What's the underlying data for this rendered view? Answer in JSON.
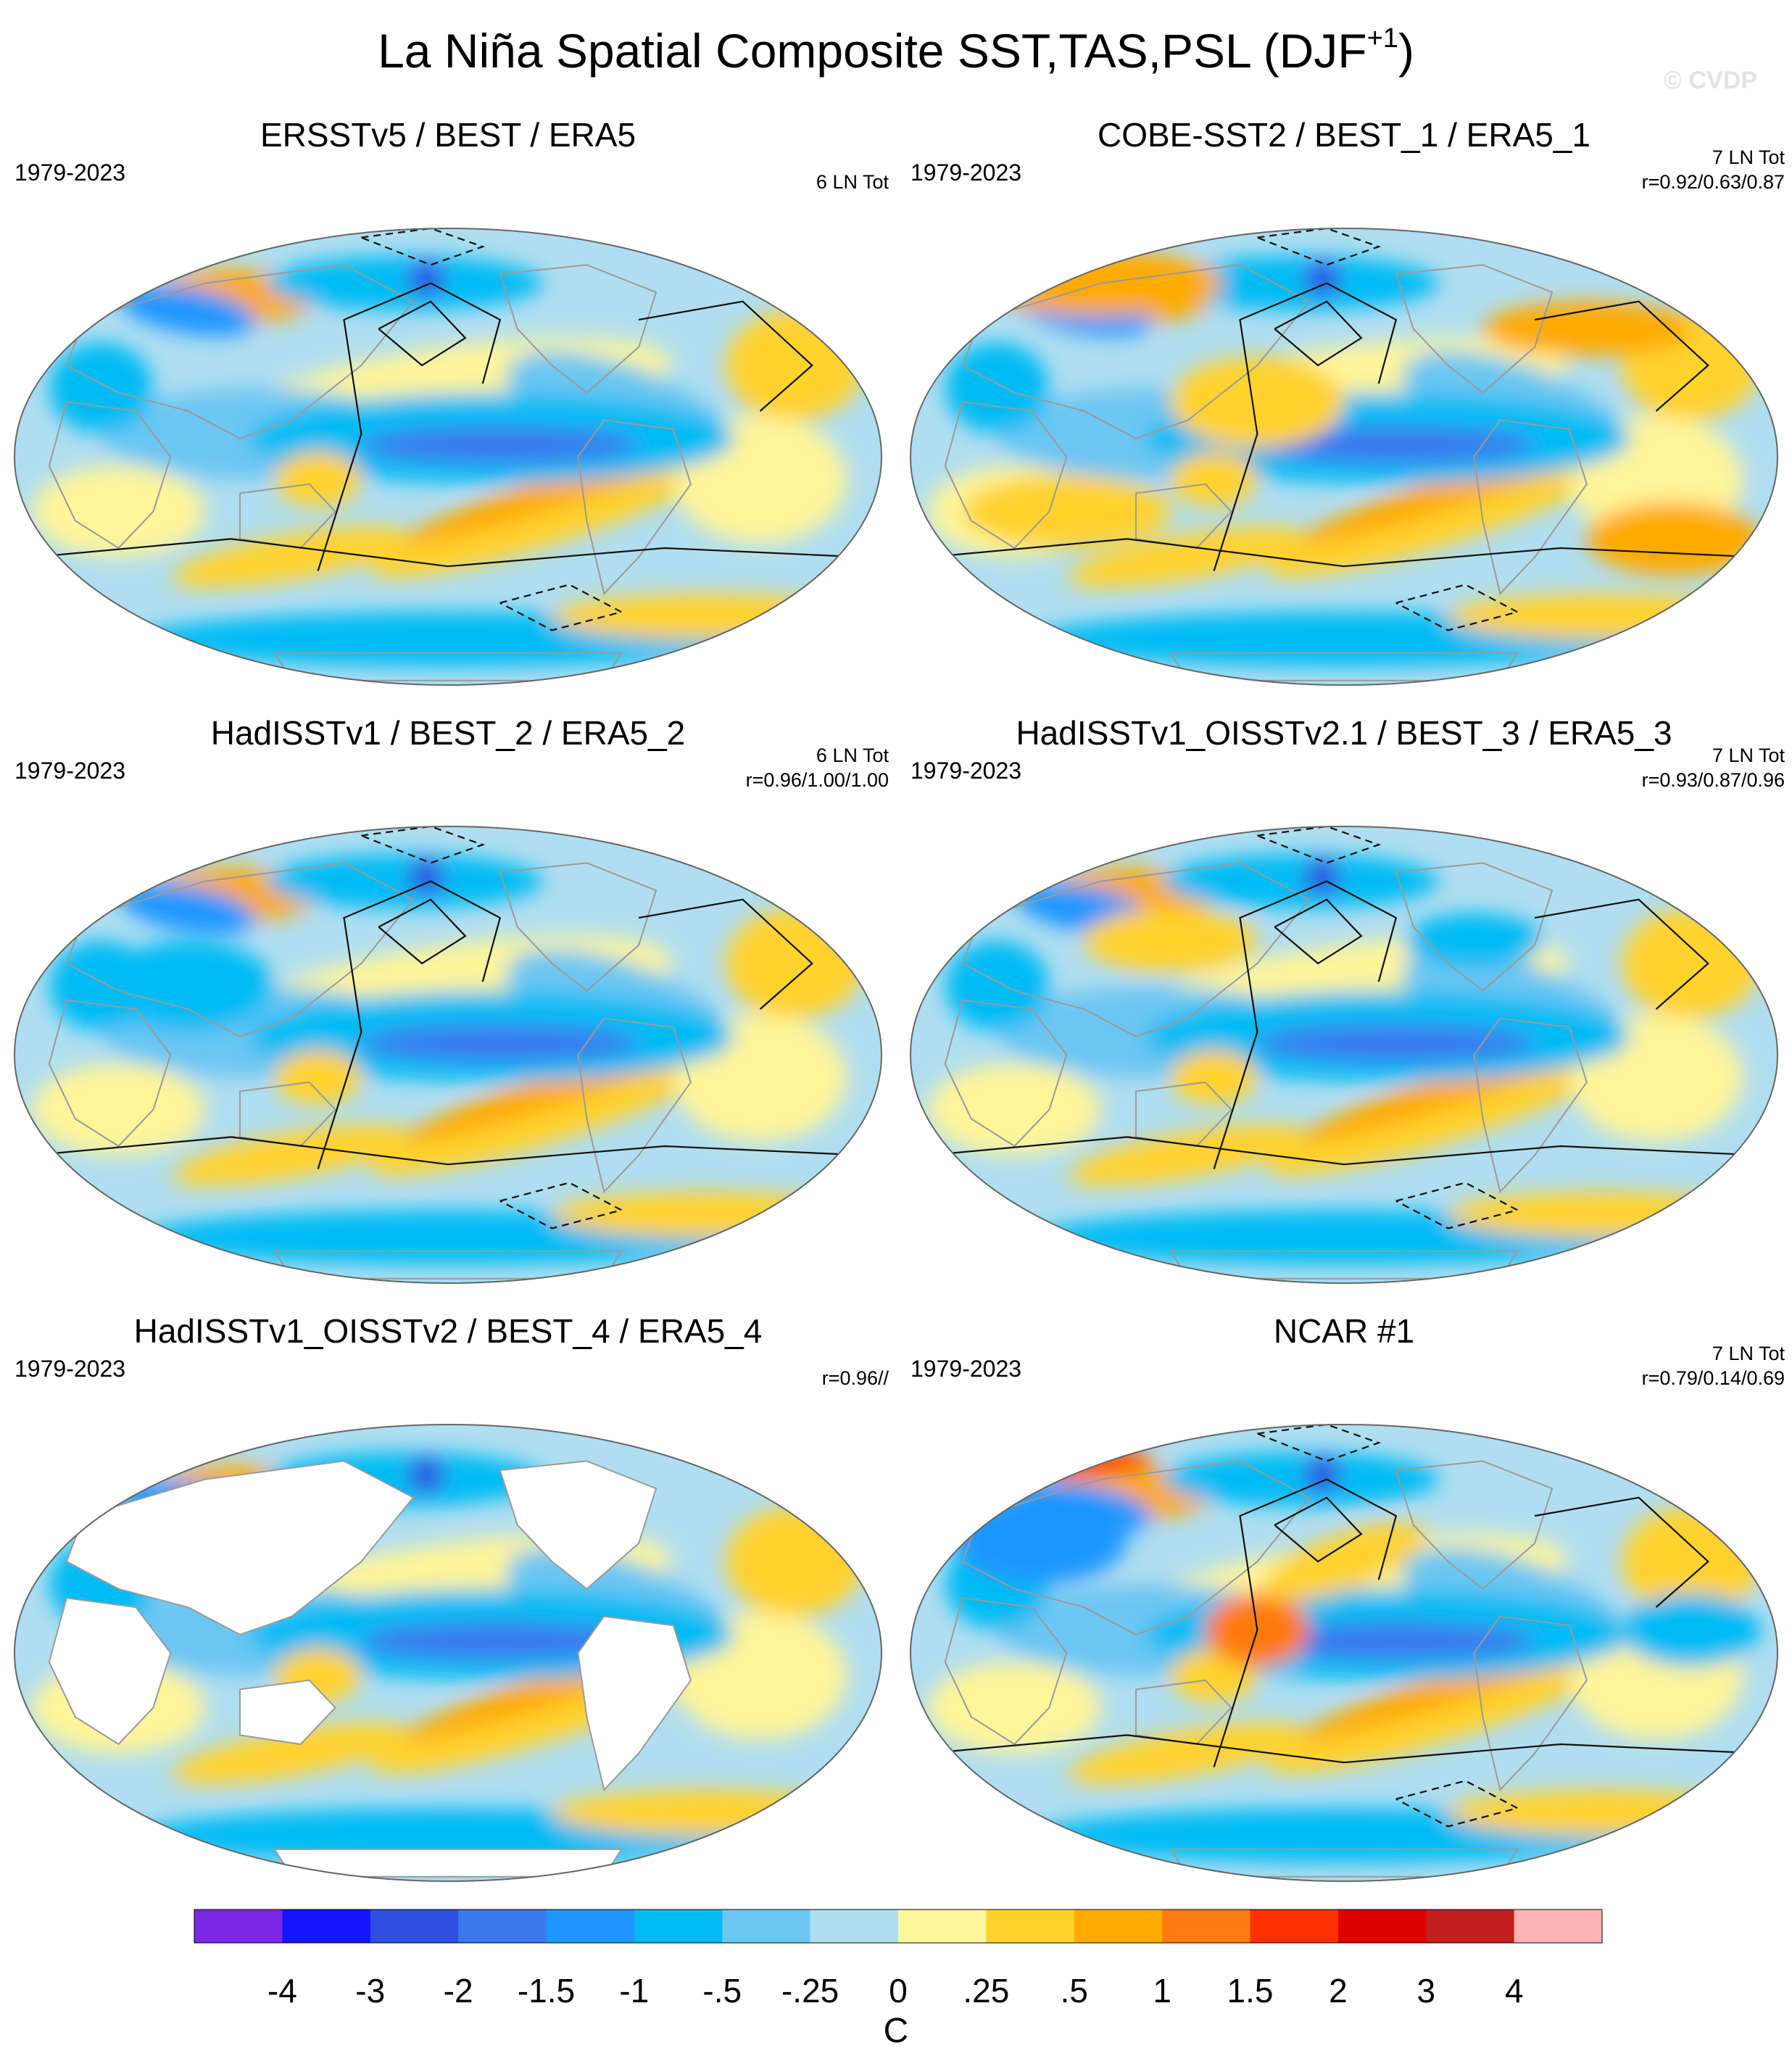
{
  "title": "La Niña Spatial Composite SST,TAS,PSL (DJF",
  "title_superscript": "+1",
  "title_suffix": ")",
  "watermark": "© CVDP",
  "panels": [
    {
      "title": "ERSSTv5 / BEST / ERA5",
      "period": "1979-2023",
      "events": "6 LN Tot",
      "corr": "",
      "land_masked": false,
      "show_psl": true
    },
    {
      "title": "COBE-SST2 / BEST_1 / ERA5_1",
      "period": "1979-2023",
      "events": "7 LN Tot",
      "corr": "r=0.92/0.63/0.87",
      "land_masked": false,
      "show_psl": true
    },
    {
      "title": "HadISSTv1 / BEST_2 / ERA5_2",
      "period": "1979-2023",
      "events": "6 LN Tot",
      "corr": "r=0.96/1.00/1.00",
      "land_masked": false,
      "show_psl": true
    },
    {
      "title": "HadISSTv1_OISSTv2.1 / BEST_3 / ERA5_3",
      "period": "1979-2023",
      "events": "7 LN Tot",
      "corr": "r=0.93/0.87/0.96",
      "land_masked": false,
      "show_psl": true
    },
    {
      "title": "HadISSTv1_OISSTv2 / BEST_4 / ERA5_4",
      "period": "1979-2023",
      "events": "",
      "corr": "r=0.96//",
      "land_masked": true,
      "show_psl": false
    },
    {
      "title": "NCAR #1",
      "period": "1979-2023",
      "events": "7 LN Tot",
      "corr": "r=0.79/0.14/0.69",
      "land_masked": false,
      "show_psl": true
    }
  ],
  "colorbar": {
    "labels": [
      "-4",
      "-3",
      "-2",
      "-1.5",
      "-1",
      "-.5",
      "-.25",
      "0",
      ".25",
      ".5",
      "1",
      "1.5",
      "2",
      "3",
      "4"
    ],
    "colors": [
      "#7a28e6",
      "#1414ff",
      "#2e4fe0",
      "#3a78ec",
      "#1e96ff",
      "#00bbf4",
      "#6cc6f2",
      "#b0def0",
      "#fff59a",
      "#ffd22e",
      "#ffaa00",
      "#ff7a10",
      "#ff3000",
      "#e00000",
      "#c41e1e",
      "#ffb4b4"
    ],
    "units": "C"
  }
}
